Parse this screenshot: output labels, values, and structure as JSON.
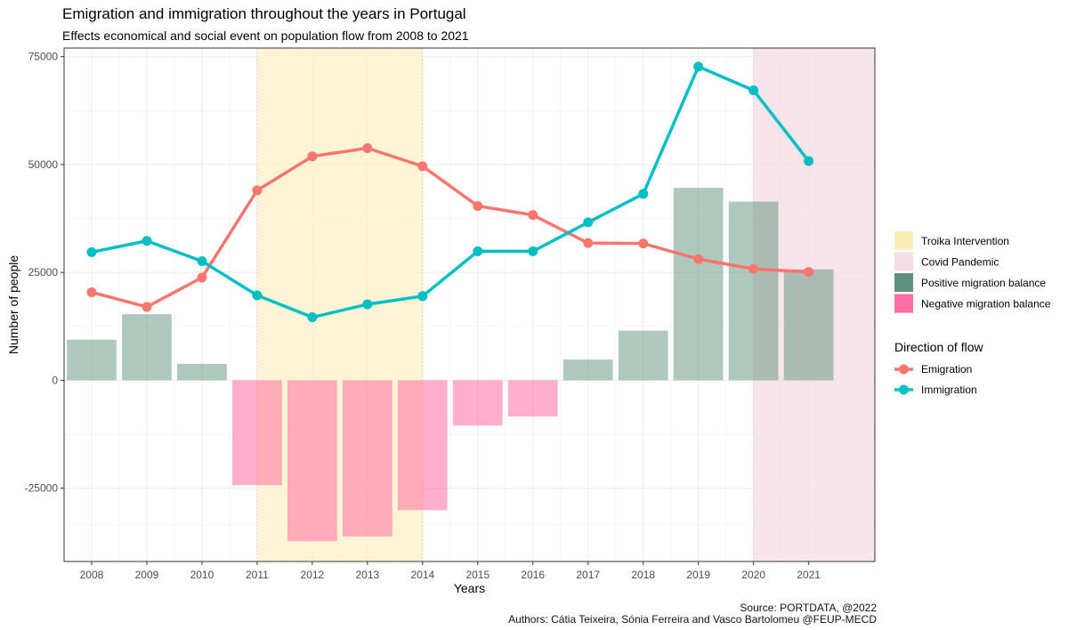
{
  "title": "Emigration and immigration throughout the years in Portugal",
  "subtitle": "Effects economical and social event on population flow from 2008 to 2021",
  "caption": {
    "source": "Source: PORTDATA, @2022",
    "authors": "Authors: Cátia Teixeira, Sónia Ferreira and Vasco Bartolomeu @FEUP-MECD"
  },
  "chart_data": {
    "type": "line",
    "xlabel": "Years",
    "ylabel": "Number of people",
    "x": [
      2008,
      2009,
      2010,
      2011,
      2012,
      2013,
      2014,
      2015,
      2016,
      2017,
      2018,
      2019,
      2020,
      2021
    ],
    "xlim": [
      2007.5,
      2022.2
    ],
    "ylim": [
      -42000,
      77000
    ],
    "y_ticks": [
      -25000,
      0,
      25000,
      50000,
      75000
    ],
    "y_tick_labels": [
      "-25000",
      "0",
      "25000",
      "50000",
      "75000"
    ],
    "grid": true,
    "legend_position": "right",
    "series": [
      {
        "name": "Emigration",
        "color": "#F8766D",
        "values": [
          20400,
          17000,
          23800,
          44000,
          51900,
          53800,
          49600,
          40400,
          38300,
          31800,
          31700,
          28100,
          25800,
          25100
        ]
      },
      {
        "name": "Immigration",
        "color": "#00BFC4",
        "values": [
          29700,
          32300,
          27600,
          19700,
          14600,
          17600,
          19500,
          29900,
          29900,
          36600,
          43200,
          72700,
          67200,
          50800
        ]
      }
    ],
    "bars": {
      "name": "Migration balance",
      "values": [
        9400,
        15300,
        3800,
        -24300,
        -37300,
        -36200,
        -30100,
        -10500,
        -8400,
        4800,
        11500,
        44600,
        41400,
        25700
      ]
    },
    "periods": [
      {
        "name": "Troika Intervention",
        "start": 2011,
        "end": 2014,
        "color": "#FFF2C8"
      },
      {
        "name": "Covid Pandemic",
        "start": 2020,
        "end": 2022.2,
        "color": "#F6DCE4"
      }
    ],
    "fill_legend": [
      {
        "label": "Troika Intervention",
        "color": "#FBEDB7"
      },
      {
        "label": "Covid Pandemic",
        "color": "#F6DCE4"
      },
      {
        "label": "Positive migration balance",
        "color": "#5E927E"
      },
      {
        "label": "Negative migration balance",
        "color": "#FF6EA3"
      }
    ],
    "legend_title": "Direction of flow"
  },
  "colors": {
    "positive": "#5E927E",
    "negative": "#FF6EA3",
    "grid": "#EBEBEB",
    "panel_border": "#333333"
  }
}
